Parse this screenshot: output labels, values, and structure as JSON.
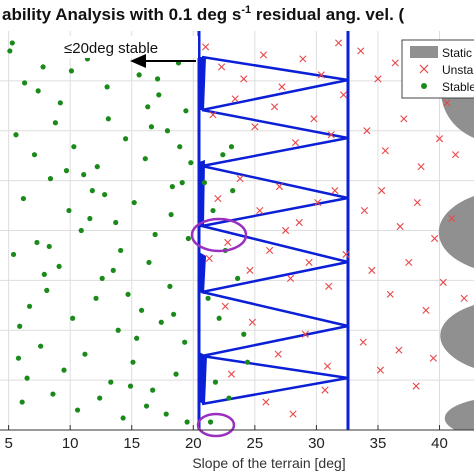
{
  "chart_data": {
    "type": "scatter",
    "title_main": "ability Analysis with 0.1 deg s",
    "title_sup": "-1",
    "title_tail": " residual ang. vel. (",
    "xlabel": "Slope of the terrain [deg]",
    "xlim": [
      4.3,
      42.8
    ],
    "ylim": [
      0,
      1
    ],
    "x_ticks": [
      "5",
      "10",
      "15",
      "20",
      "25",
      "30",
      "35",
      "40"
    ],
    "grid": true,
    "annotation": "≤20deg stable",
    "legend_position": "top-right",
    "legend": [
      {
        "label": "Static",
        "kind": "patch"
      },
      {
        "label": "Unsta",
        "kind": "x-marker"
      },
      {
        "label": "Stable",
        "kind": "dot-marker"
      }
    ],
    "boundary_lines_x": [
      20,
      32.7
    ],
    "colors": {
      "stable": "#1a8a1a",
      "unstable": "#e8474a",
      "boundary": "#0a1fd6",
      "static_region": "#909090",
      "highlight": "#9a2fc0",
      "grid": "#dedede"
    },
    "series": [
      {
        "name": "Stable",
        "marker": "dot",
        "x": [
          5.1,
          6.3,
          7.8,
          9.2,
          11.4,
          13.1,
          15.6,
          17.2,
          18.8,
          19.4,
          5.6,
          7.1,
          8.8,
          10.3,
          12.2,
          14.5,
          16.1,
          17.9,
          19.1,
          6.2,
          8.4,
          9.9,
          11.8,
          13.7,
          15.2,
          16.9,
          18.3,
          5.4,
          7.3,
          9.1,
          10.9,
          12.6,
          14.1,
          16.4,
          18.1,
          19.6,
          6.7,
          8.1,
          10.2,
          12.1,
          13.9,
          15.8,
          17.4,
          19.3,
          5.8,
          7.6,
          9.5,
          11.2,
          13.3,
          15.1,
          16.7,
          18.6,
          6.1,
          8.6,
          10.6,
          12.4,
          14.3,
          16.2,
          17.8,
          19.5,
          5.3,
          7.4,
          9.7,
          11.6,
          13.5,
          15.4,
          17.1,
          18.9,
          6.5,
          8.3,
          10.1,
          12.8,
          14.7,
          16.6,
          18.2,
          5.9,
          7.9,
          9.4,
          11.1,
          13.0,
          14.9,
          16.3,
          18.4,
          19.8,
          20.9,
          21.6,
          22.4,
          23.2,
          21.2,
          22.1,
          23.6,
          24.1,
          21.8,
          22.9,
          24.4,
          23.1,
          21.4,
          22.6
        ],
        "y": [
          0.95,
          0.87,
          0.91,
          0.82,
          0.93,
          0.78,
          0.89,
          0.84,
          0.92,
          0.8,
          0.74,
          0.69,
          0.77,
          0.71,
          0.66,
          0.73,
          0.68,
          0.75,
          0.62,
          0.58,
          0.63,
          0.55,
          0.6,
          0.52,
          0.57,
          0.49,
          0.61,
          0.44,
          0.47,
          0.41,
          0.5,
          0.38,
          0.45,
          0.42,
          0.36,
          0.48,
          0.31,
          0.35,
          0.28,
          0.33,
          0.25,
          0.3,
          0.27,
          0.22,
          0.18,
          0.21,
          0.15,
          0.19,
          0.12,
          0.17,
          0.1,
          0.14,
          0.07,
          0.09,
          0.05,
          0.08,
          0.03,
          0.06,
          0.04,
          0.02,
          0.97,
          0.85,
          0.65,
          0.53,
          0.4,
          0.23,
          0.88,
          0.71,
          0.13,
          0.46,
          0.9,
          0.59,
          0.34,
          0.76,
          0.54,
          0.26,
          0.39,
          0.97,
          0.64,
          0.86,
          0.11,
          0.81,
          0.29,
          0.67,
          0.62,
          0.55,
          0.69,
          0.6,
          0.33,
          0.28,
          0.38,
          0.24,
          0.12,
          0.08,
          0.17,
          0.71,
          0.02,
          0.45
        ]
      },
      {
        "name": "Unsta",
        "marker": "x",
        "x": [
          21.0,
          22.3,
          24.1,
          25.7,
          27.2,
          28.9,
          30.4,
          31.8,
          21.6,
          23.4,
          25.0,
          26.6,
          28.3,
          29.8,
          31.2,
          32.2,
          22.0,
          23.8,
          25.4,
          27.0,
          28.6,
          30.1,
          31.5,
          21.3,
          22.8,
          24.6,
          26.2,
          27.9,
          29.4,
          31.0,
          32.4,
          33.6,
          35.0,
          36.4,
          37.8,
          39.2,
          40.6,
          34.1,
          35.6,
          37.1,
          38.5,
          40.0,
          41.3,
          33.9,
          35.3,
          36.8,
          38.2,
          39.6,
          41.0,
          34.5,
          36.0,
          37.5,
          38.9,
          40.3,
          42.0,
          33.8,
          35.2,
          36.7,
          38.1,
          39.5,
          24.8,
          26.9,
          29.1,
          30.7,
          23.1,
          25.9,
          28.1,
          30.9,
          22.6,
          27.5
        ],
        "y": [
          0.96,
          0.91,
          0.88,
          0.94,
          0.86,
          0.93,
          0.89,
          0.97,
          0.79,
          0.83,
          0.76,
          0.81,
          0.72,
          0.78,
          0.74,
          0.84,
          0.58,
          0.63,
          0.55,
          0.61,
          0.52,
          0.57,
          0.6,
          0.43,
          0.47,
          0.4,
          0.45,
          0.38,
          0.42,
          0.36,
          0.44,
          0.95,
          0.88,
          0.92,
          0.85,
          0.9,
          0.82,
          0.75,
          0.7,
          0.78,
          0.66,
          0.73,
          0.69,
          0.55,
          0.6,
          0.51,
          0.57,
          0.48,
          0.53,
          0.4,
          0.34,
          0.42,
          0.3,
          0.37,
          0.33,
          0.22,
          0.15,
          0.2,
          0.11,
          0.18,
          0.27,
          0.19,
          0.24,
          0.1,
          0.14,
          0.07,
          0.04,
          0.16,
          0.31,
          0.5
        ]
      }
    ]
  }
}
